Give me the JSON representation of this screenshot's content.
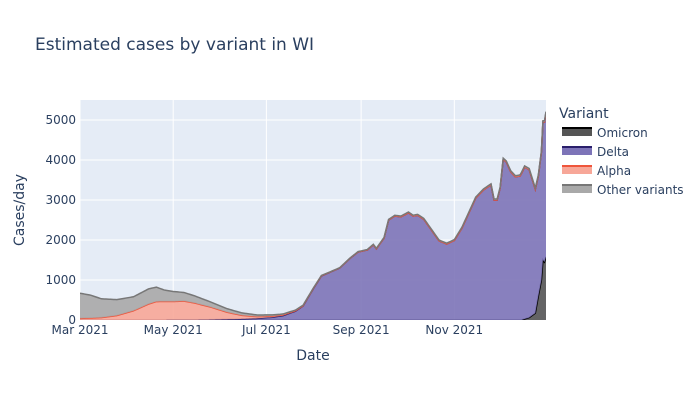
{
  "chart_data": {
    "type": "area",
    "title": "Estimated cases by variant in WI",
    "xlabel": "Date",
    "ylabel": "Cases/day",
    "x_range": [
      "2021-03-01",
      "2021-12-31"
    ],
    "ylim": [
      0,
      5500
    ],
    "x_ticks": [
      {
        "date": "2021-03-01",
        "label": "Mar 2021"
      },
      {
        "date": "2021-05-01",
        "label": "May 2021"
      },
      {
        "date": "2021-07-01",
        "label": "Jul 2021"
      },
      {
        "date": "2021-09-01",
        "label": "Sep 2021"
      },
      {
        "date": "2021-11-01",
        "label": "Nov 2021"
      }
    ],
    "y_ticks": [
      0,
      1000,
      2000,
      3000,
      4000,
      5000
    ],
    "grid": true,
    "stacked": true,
    "legend": {
      "title": "Variant",
      "placement": "right",
      "order": [
        "Omicron",
        "Delta",
        "Alpha",
        "Other variants"
      ]
    },
    "series": [
      {
        "name": "Omicron",
        "line_color": "#000000",
        "fill_color": "#555555",
        "points": [
          [
            "2021-12-05",
            0
          ],
          [
            "2021-12-15",
            0
          ],
          [
            "2021-12-20",
            60
          ],
          [
            "2021-12-24",
            170
          ],
          [
            "2021-12-26",
            600
          ],
          [
            "2021-12-28",
            1000
          ],
          [
            "2021-12-29",
            1500
          ],
          [
            "2021-12-30",
            1450
          ],
          [
            "2021-12-31",
            1580
          ]
        ]
      },
      {
        "name": "Delta",
        "line_color": "#2a1f6b",
        "fill_color": "#7d74b8",
        "points": [
          [
            "2021-04-15",
            0
          ],
          [
            "2021-05-20",
            5
          ],
          [
            "2021-06-10",
            20
          ],
          [
            "2021-06-25",
            40
          ],
          [
            "2021-07-05",
            70
          ],
          [
            "2021-07-12",
            110
          ],
          [
            "2021-07-20",
            220
          ],
          [
            "2021-07-25",
            350
          ],
          [
            "2021-08-01",
            800
          ],
          [
            "2021-08-06",
            1100
          ],
          [
            "2021-08-12",
            1200
          ],
          [
            "2021-08-18",
            1300
          ],
          [
            "2021-08-25",
            1550
          ],
          [
            "2021-08-30",
            1700
          ],
          [
            "2021-09-05",
            1750
          ],
          [
            "2021-09-09",
            1880
          ],
          [
            "2021-09-11",
            1780
          ],
          [
            "2021-09-16",
            2050
          ],
          [
            "2021-09-19",
            2500
          ],
          [
            "2021-09-23",
            2600
          ],
          [
            "2021-09-27",
            2580
          ],
          [
            "2021-10-02",
            2680
          ],
          [
            "2021-10-05",
            2600
          ],
          [
            "2021-10-08",
            2620
          ],
          [
            "2021-10-12",
            2520
          ],
          [
            "2021-10-17",
            2250
          ],
          [
            "2021-10-22",
            1980
          ],
          [
            "2021-10-27",
            1900
          ],
          [
            "2021-11-01",
            1990
          ],
          [
            "2021-11-06",
            2300
          ],
          [
            "2021-11-12",
            2800
          ],
          [
            "2021-11-15",
            3050
          ],
          [
            "2021-11-20",
            3250
          ],
          [
            "2021-11-25",
            3380
          ],
          [
            "2021-11-27",
            3000
          ],
          [
            "2021-11-29",
            3000
          ],
          [
            "2021-12-01",
            3300
          ],
          [
            "2021-12-03",
            4020
          ],
          [
            "2021-12-05",
            3950
          ],
          [
            "2021-12-08",
            3700
          ],
          [
            "2021-12-11",
            3580
          ],
          [
            "2021-12-14",
            3600
          ],
          [
            "2021-12-17",
            3800
          ],
          [
            "2021-12-20",
            3700
          ],
          [
            "2021-12-24",
            3100
          ],
          [
            "2021-12-26",
            3000
          ],
          [
            "2021-12-28",
            3200
          ],
          [
            "2021-12-29",
            3450
          ],
          [
            "2021-12-30",
            3500
          ],
          [
            "2021-12-31",
            3600
          ]
        ]
      },
      {
        "name": "Alpha",
        "line_color": "#ef553b",
        "fill_color": "#f7a798",
        "points": [
          [
            "2021-03-01",
            40
          ],
          [
            "2021-03-15",
            60
          ],
          [
            "2021-03-25",
            110
          ],
          [
            "2021-04-05",
            230
          ],
          [
            "2021-04-15",
            400
          ],
          [
            "2021-04-20",
            460
          ],
          [
            "2021-05-01",
            460
          ],
          [
            "2021-05-08",
            470
          ],
          [
            "2021-05-15",
            420
          ],
          [
            "2021-05-25",
            320
          ],
          [
            "2021-06-05",
            180
          ],
          [
            "2021-06-15",
            90
          ],
          [
            "2021-06-25",
            45
          ],
          [
            "2021-07-10",
            20
          ],
          [
            "2021-07-25",
            8
          ],
          [
            "2021-08-15",
            2
          ],
          [
            "2021-09-01",
            0
          ],
          [
            "2021-12-31",
            0
          ]
        ]
      },
      {
        "name": "Other variants",
        "line_color": "#777777",
        "fill_color": "#a9a9a9",
        "points": [
          [
            "2021-03-01",
            630
          ],
          [
            "2021-03-08",
            570
          ],
          [
            "2021-03-15",
            470
          ],
          [
            "2021-03-25",
            400
          ],
          [
            "2021-04-05",
            350
          ],
          [
            "2021-04-15",
            380
          ],
          [
            "2021-04-20",
            360
          ],
          [
            "2021-04-25",
            290
          ],
          [
            "2021-05-01",
            250
          ],
          [
            "2021-05-15",
            180
          ],
          [
            "2021-05-25",
            130
          ],
          [
            "2021-06-05",
            90
          ],
          [
            "2021-06-15",
            60
          ],
          [
            "2021-06-25",
            40
          ],
          [
            "2021-07-10",
            25
          ],
          [
            "2021-07-25",
            12
          ],
          [
            "2021-08-15",
            5
          ],
          [
            "2021-09-01",
            10
          ],
          [
            "2021-10-01",
            20
          ],
          [
            "2021-11-01",
            20
          ],
          [
            "2021-12-01",
            25
          ],
          [
            "2021-12-31",
            30
          ]
        ]
      }
    ]
  }
}
